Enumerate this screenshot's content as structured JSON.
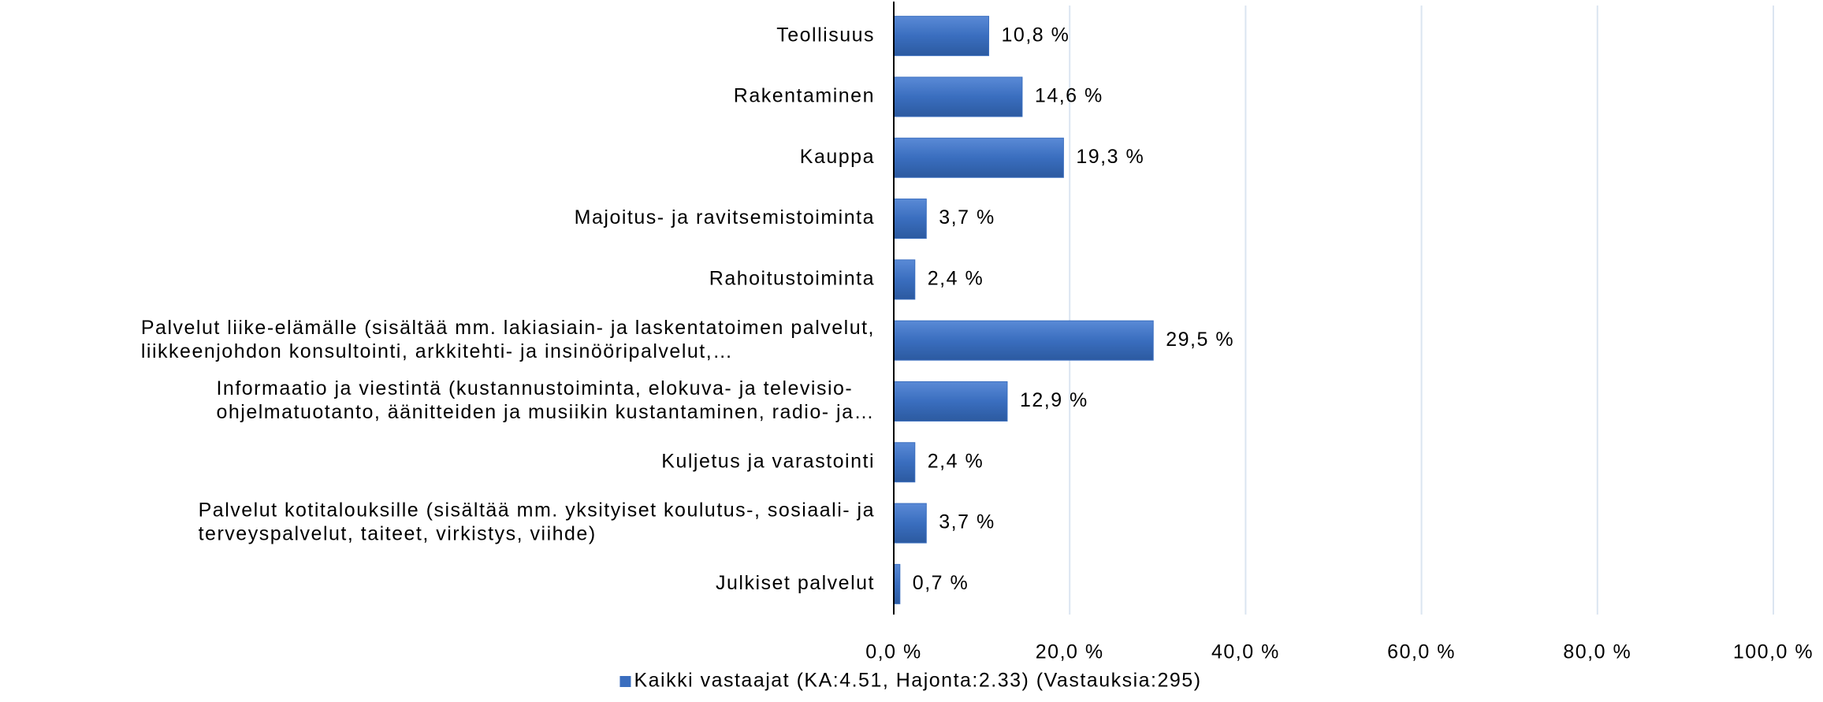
{
  "chart_data": {
    "type": "bar",
    "orientation": "horizontal",
    "categories": [
      [
        "Teollisuus"
      ],
      [
        "Rakentaminen"
      ],
      [
        "Kauppa"
      ],
      [
        "Majoitus- ja ravitsemistoiminta"
      ],
      [
        "Rahoitustoiminta"
      ],
      [
        "Palvelut liike-elämälle (sisältää mm. lakiasiain- ja laskentatoimen palvelut,",
        "liikkeenjohdon konsultointi, arkkitehti- ja insinööripalvelut,…"
      ],
      [
        "Informaatio ja viestintä (kustannustoiminta, elokuva- ja televisio-",
        "ohjelmatuotanto, äänitteiden ja musiikin kustantaminen, radio- ja…"
      ],
      [
        "Kuljetus ja varastointi"
      ],
      [
        "Palvelut kotitalouksille (sisältää mm. yksityiset koulutus-, sosiaali- ja",
        "terveyspalvelut, taiteet, virkistys, viihde)"
      ],
      [
        "Julkiset palvelut"
      ]
    ],
    "series": [
      {
        "name": "Kaikki vastaajat (KA:4.51, Hajonta:2.33) (Vastauksia:295)",
        "color": "#3a6ebf",
        "values": [
          10.8,
          14.6,
          19.3,
          3.7,
          2.4,
          29.5,
          12.9,
          2.4,
          3.7,
          0.7
        ],
        "value_labels": [
          "10,8 %",
          "14,6 %",
          "19,3 %",
          "3,7 %",
          "2,4 %",
          "29,5 %",
          "12,9 %",
          "2,4 %",
          "3,7 %",
          "0,7 %"
        ]
      }
    ],
    "xlim": [
      0,
      100
    ],
    "xticks": [
      {
        "value": 0,
        "label": "0,0 %"
      },
      {
        "value": 20,
        "label": "20,0 %"
      },
      {
        "value": 40,
        "label": "40,0 %"
      },
      {
        "value": 60,
        "label": "60,0 %"
      },
      {
        "value": 80,
        "label": "80,0 %"
      },
      {
        "value": 100,
        "label": "100,0 %"
      }
    ],
    "grid": true,
    "legend": "bottom"
  }
}
